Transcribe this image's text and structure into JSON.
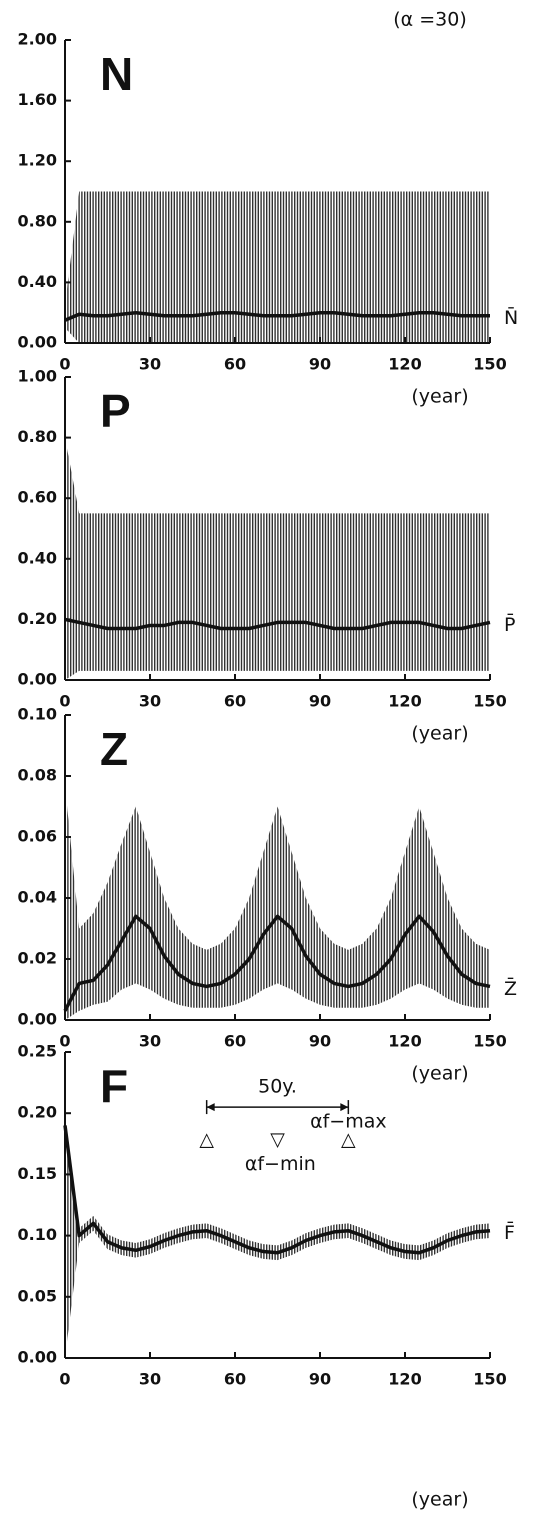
{
  "caption": "(α =30)",
  "chart_data": [
    {
      "type": "line",
      "title": "N",
      "xlabel": "(year)",
      "x": [
        0,
        5,
        10,
        15,
        20,
        25,
        30,
        35,
        40,
        45,
        50,
        55,
        60,
        65,
        70,
        75,
        80,
        85,
        90,
        95,
        100,
        105,
        110,
        115,
        120,
        125,
        130,
        135,
        140,
        145,
        150
      ],
      "envelope": {
        "color": "#333333",
        "upper": [
          0.25,
          1,
          1,
          1,
          1,
          1,
          1,
          1,
          1,
          1,
          1,
          1,
          1,
          1,
          1,
          1,
          1,
          1,
          1,
          1,
          1,
          1,
          1,
          1,
          1,
          1,
          1,
          1,
          1,
          1,
          1
        ],
        "lower": [
          0.1,
          0,
          0,
          0,
          0,
          0,
          0,
          0,
          0,
          0,
          0,
          0,
          0,
          0,
          0,
          0,
          0,
          0,
          0,
          0,
          0,
          0,
          0,
          0,
          0,
          0,
          0,
          0,
          0,
          0,
          0
        ]
      },
      "series": [
        {
          "name": "N̄",
          "color": "#111111",
          "values": [
            0.15,
            0.19,
            0.18,
            0.18,
            0.19,
            0.2,
            0.19,
            0.18,
            0.18,
            0.18,
            0.19,
            0.2,
            0.2,
            0.19,
            0.18,
            0.18,
            0.18,
            0.19,
            0.2,
            0.2,
            0.19,
            0.18,
            0.18,
            0.18,
            0.19,
            0.2,
            0.2,
            0.19,
            0.18,
            0.18,
            0.18
          ]
        }
      ],
      "xlim": [
        0,
        150
      ],
      "xticks": [
        0,
        30,
        60,
        90,
        120,
        150
      ],
      "ylim": [
        0,
        2
      ],
      "yticks": [
        {
          "value": 0,
          "label": "0.00"
        },
        {
          "value": 0.4,
          "label": "0.40"
        },
        {
          "value": 0.8,
          "label": "0.80"
        },
        {
          "value": 1.2,
          "label": "1.20"
        },
        {
          "value": 1.6,
          "label": "1.60"
        },
        {
          "value": 2,
          "label": "2.00"
        }
      ]
    },
    {
      "type": "line",
      "title": "P",
      "xlabel": "(year)",
      "x": [
        0,
        5,
        10,
        15,
        20,
        25,
        30,
        35,
        40,
        45,
        50,
        55,
        60,
        65,
        70,
        75,
        80,
        85,
        90,
        95,
        100,
        105,
        110,
        115,
        120,
        125,
        130,
        135,
        140,
        145,
        150
      ],
      "envelope": {
        "color": "#333333",
        "upper": [
          0.8,
          0.55,
          0.55,
          0.55,
          0.55,
          0.55,
          0.55,
          0.55,
          0.55,
          0.55,
          0.55,
          0.55,
          0.55,
          0.55,
          0.55,
          0.55,
          0.55,
          0.55,
          0.55,
          0.55,
          0.55,
          0.55,
          0.55,
          0.55,
          0.55,
          0.55,
          0.55,
          0.55,
          0.55,
          0.55,
          0.55
        ],
        "lower": [
          0,
          0.03,
          0.03,
          0.03,
          0.03,
          0.03,
          0.03,
          0.03,
          0.03,
          0.03,
          0.03,
          0.03,
          0.03,
          0.03,
          0.03,
          0.03,
          0.03,
          0.03,
          0.03,
          0.03,
          0.03,
          0.03,
          0.03,
          0.03,
          0.03,
          0.03,
          0.03,
          0.03,
          0.03,
          0.03,
          0.03
        ]
      },
      "series": [
        {
          "name": "P̄",
          "color": "#111111",
          "values": [
            0.2,
            0.19,
            0.18,
            0.17,
            0.17,
            0.17,
            0.18,
            0.18,
            0.19,
            0.19,
            0.18,
            0.17,
            0.17,
            0.17,
            0.18,
            0.19,
            0.19,
            0.19,
            0.18,
            0.17,
            0.17,
            0.17,
            0.18,
            0.19,
            0.19,
            0.19,
            0.18,
            0.17,
            0.17,
            0.18,
            0.19
          ]
        }
      ],
      "xlim": [
        0,
        150
      ],
      "xticks": [
        0,
        30,
        60,
        90,
        120,
        150
      ],
      "ylim": [
        0,
        1
      ],
      "yticks": [
        {
          "value": 0,
          "label": "0.00"
        },
        {
          "value": 0.2,
          "label": "0.20"
        },
        {
          "value": 0.4,
          "label": "0.40"
        },
        {
          "value": 0.6,
          "label": "0.60"
        },
        {
          "value": 0.8,
          "label": "0.80"
        },
        {
          "value": 1,
          "label": "1.00"
        }
      ]
    },
    {
      "type": "line",
      "title": "Z",
      "xlabel": "(year)",
      "x": [
        0,
        5,
        10,
        15,
        20,
        25,
        30,
        35,
        40,
        45,
        50,
        55,
        60,
        65,
        70,
        75,
        80,
        85,
        90,
        95,
        100,
        105,
        110,
        115,
        120,
        125,
        130,
        135,
        140,
        145,
        150
      ],
      "envelope": {
        "color": "#333333",
        "upper": [
          0.077,
          0.03,
          0.035,
          0.045,
          0.058,
          0.07,
          0.055,
          0.04,
          0.03,
          0.025,
          0.023,
          0.025,
          0.03,
          0.04,
          0.055,
          0.07,
          0.055,
          0.04,
          0.03,
          0.025,
          0.023,
          0.025,
          0.03,
          0.04,
          0.055,
          0.07,
          0.055,
          0.04,
          0.03,
          0.025,
          0.023
        ],
        "lower": [
          0,
          0.003,
          0.005,
          0.006,
          0.01,
          0.012,
          0.01,
          0.007,
          0.005,
          0.004,
          0.004,
          0.004,
          0.005,
          0.007,
          0.01,
          0.012,
          0.01,
          0.007,
          0.005,
          0.004,
          0.004,
          0.004,
          0.005,
          0.007,
          0.01,
          0.012,
          0.01,
          0.007,
          0.005,
          0.004,
          0.004
        ]
      },
      "series": [
        {
          "name": "Z̄",
          "color": "#111111",
          "values": [
            0.003,
            0.012,
            0.013,
            0.018,
            0.026,
            0.034,
            0.03,
            0.021,
            0.015,
            0.012,
            0.011,
            0.012,
            0.015,
            0.02,
            0.028,
            0.034,
            0.03,
            0.021,
            0.015,
            0.012,
            0.011,
            0.012,
            0.015,
            0.02,
            0.028,
            0.034,
            0.029,
            0.021,
            0.015,
            0.012,
            0.011
          ]
        }
      ],
      "xlim": [
        0,
        150
      ],
      "xticks": [
        0,
        30,
        60,
        90,
        120,
        150
      ],
      "ylim": [
        0,
        0.1
      ],
      "yticks": [
        {
          "value": 0,
          "label": "0.00"
        },
        {
          "value": 0.02,
          "label": "0.02"
        },
        {
          "value": 0.04,
          "label": "0.04"
        },
        {
          "value": 0.06,
          "label": "0.06"
        },
        {
          "value": 0.08,
          "label": "0.08"
        },
        {
          "value": 0.1,
          "label": "0.10"
        }
      ]
    },
    {
      "type": "line",
      "title": "F",
      "xlabel": "(year)",
      "x": [
        0,
        5,
        10,
        15,
        20,
        25,
        30,
        35,
        40,
        45,
        50,
        55,
        60,
        65,
        70,
        75,
        80,
        85,
        90,
        95,
        100,
        105,
        110,
        115,
        120,
        125,
        130,
        135,
        140,
        145,
        150
      ],
      "envelope": {
        "color": "#333333",
        "upper": [
          0.19,
          0.106,
          0.116,
          0.101,
          0.096,
          0.094,
          0.097,
          0.102,
          0.106,
          0.109,
          0.11,
          0.106,
          0.101,
          0.096,
          0.093,
          0.092,
          0.096,
          0.102,
          0.106,
          0.109,
          0.11,
          0.106,
          0.101,
          0.096,
          0.093,
          0.092,
          0.096,
          0.102,
          0.106,
          0.109,
          0.11
        ],
        "lower": [
          0,
          0.094,
          0.104,
          0.089,
          0.084,
          0.082,
          0.085,
          0.09,
          0.094,
          0.097,
          0.098,
          0.094,
          0.089,
          0.084,
          0.081,
          0.08,
          0.084,
          0.09,
          0.094,
          0.097,
          0.098,
          0.094,
          0.089,
          0.084,
          0.081,
          0.08,
          0.084,
          0.09,
          0.094,
          0.097,
          0.098
        ]
      },
      "series": [
        {
          "name": "F̄",
          "color": "#111111",
          "values": [
            0.19,
            0.1,
            0.11,
            0.095,
            0.09,
            0.088,
            0.091,
            0.096,
            0.1,
            0.103,
            0.104,
            0.1,
            0.095,
            0.09,
            0.087,
            0.086,
            0.09,
            0.096,
            0.1,
            0.103,
            0.104,
            0.1,
            0.095,
            0.09,
            0.087,
            0.086,
            0.09,
            0.096,
            0.1,
            0.103,
            0.104
          ]
        }
      ],
      "xlim": [
        0,
        150
      ],
      "xticks": [
        0,
        30,
        60,
        90,
        120,
        150
      ],
      "ylim": [
        0,
        0.25
      ],
      "yticks": [
        {
          "value": 0,
          "label": "0.00"
        },
        {
          "value": 0.05,
          "label": "0.05"
        },
        {
          "value": 0.1,
          "label": "0.10"
        },
        {
          "value": 0.15,
          "label": "0.15"
        },
        {
          "value": 0.2,
          "label": "0.20"
        },
        {
          "value": 0.25,
          "label": "0.25"
        }
      ],
      "span": {
        "text": "50y.",
        "x": [
          50,
          100
        ],
        "y": 0.205
      },
      "annotations": [
        {
          "text": "αf−max",
          "x": 100,
          "y": 0.193
        },
        {
          "text": "△",
          "x": 50,
          "y": 0.178
        },
        {
          "text": "▽",
          "x": 75,
          "y": 0.178
        },
        {
          "text": "△",
          "x": 100,
          "y": 0.178
        },
        {
          "text": "αf−min",
          "x": 76,
          "y": 0.158
        }
      ]
    }
  ]
}
